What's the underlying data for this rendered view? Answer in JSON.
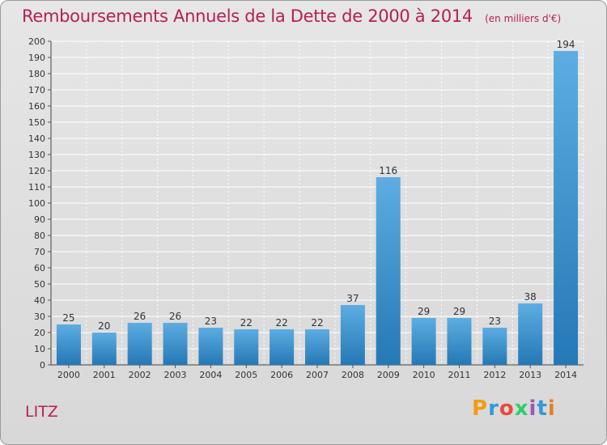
{
  "header": {
    "title": "Remboursements Annuels de la Dette de 2000 à 2014",
    "unit": "(en milliers d'€)"
  },
  "footer": {
    "city": "LITZ",
    "logo_text": "Proxiti",
    "logo_colors": [
      "#f39c12",
      "#3498db",
      "#e74c3c",
      "#2ecc71",
      "#9b59b6",
      "#3498db",
      "#e67e22"
    ]
  },
  "colors": {
    "bar_light": "#5dade2",
    "bar_dark": "#2478b5",
    "grid": "#ffffff",
    "title": "#b8204f"
  },
  "chart_data": {
    "type": "bar",
    "title": "Remboursements Annuels de la Dette de 2000 à 2014",
    "categories": [
      "2000",
      "2001",
      "2002",
      "2003",
      "2004",
      "2005",
      "2006",
      "2007",
      "2008",
      "2009",
      "2010",
      "2011",
      "2012",
      "2013",
      "2014"
    ],
    "values": [
      25,
      20,
      26,
      26,
      23,
      22,
      22,
      22,
      37,
      116,
      29,
      29,
      23,
      38,
      194
    ],
    "ylim": [
      0,
      200
    ],
    "ytick_step": 10,
    "grid": true
  }
}
